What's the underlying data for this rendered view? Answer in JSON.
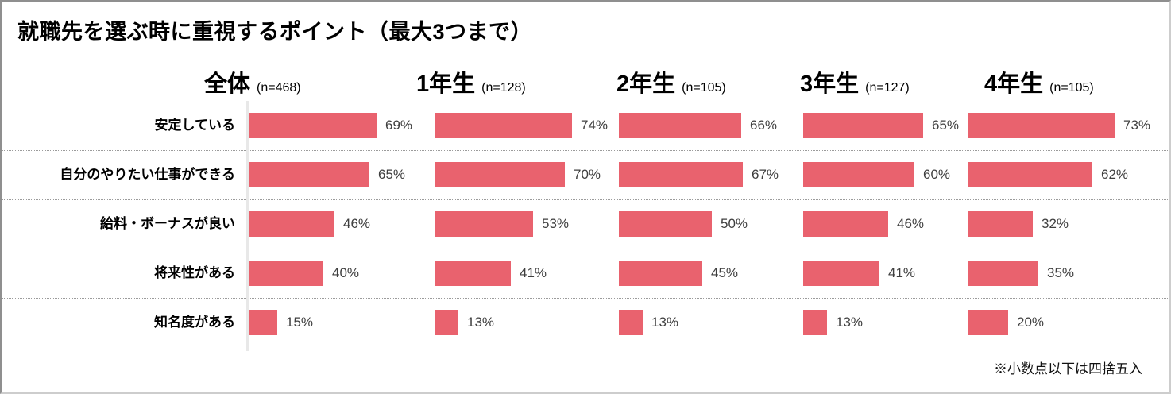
{
  "title": "就職先を選ぶ時に重視するポイント（最大3つまで）",
  "footnote": "※小数点以下は四捨五入",
  "chart_data": {
    "type": "bar",
    "orientation": "horizontal",
    "title": "就職先を選ぶ時に重視するポイント（最大3つまで）",
    "unit": "%",
    "xlim": [
      0,
      100
    ],
    "grid": false,
    "legend": "none",
    "bar_color": "#e9626e",
    "separator_style": "dotted",
    "categories": [
      "安定している",
      "自分のやりたい仕事ができる",
      "給料・ボーナスが良い",
      "将来性がある",
      "知名度がある"
    ],
    "series": [
      {
        "name": "全体",
        "n": 468,
        "n_label": "(n=468)",
        "values": [
          69,
          65,
          46,
          40,
          15
        ],
        "value_labels": [
          "69%",
          "65%",
          "46%",
          "40%",
          "15%"
        ]
      },
      {
        "name": "1年生",
        "n": 128,
        "n_label": "(n=128)",
        "values": [
          74,
          70,
          53,
          41,
          13
        ],
        "value_labels": [
          "74%",
          "70%",
          "53%",
          "41%",
          "13%"
        ]
      },
      {
        "name": "2年生",
        "n": 105,
        "n_label": "(n=105)",
        "values": [
          66,
          67,
          50,
          45,
          13
        ],
        "value_labels": [
          "66%",
          "67%",
          "50%",
          "45%",
          "13%"
        ]
      },
      {
        "name": "3年生",
        "n": 127,
        "n_label": "(n=127)",
        "values": [
          65,
          60,
          46,
          41,
          13
        ],
        "value_labels": [
          "65%",
          "60%",
          "46%",
          "41%",
          "13%"
        ]
      },
      {
        "name": "4年生",
        "n": 105,
        "n_label": "(n=105)",
        "values": [
          73,
          62,
          32,
          35,
          20
        ],
        "value_labels": [
          "73%",
          "62%",
          "32%",
          "35%",
          "20%"
        ]
      }
    ],
    "note": "※小数点以下は四捨五入"
  }
}
